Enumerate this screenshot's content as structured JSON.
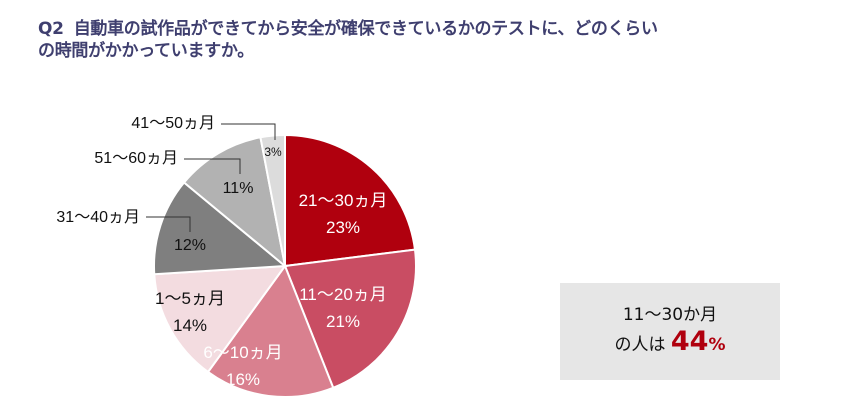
{
  "title": {
    "q_label": "Q2",
    "line1": "自動車の試作品ができてから安全が確保できているかのテストに、どのくらい",
    "line2": "の時間がかかっていますか。"
  },
  "summary": {
    "line1": "11～30か月",
    "line2_prefix": "の人は",
    "value": "44",
    "unit": "%"
  },
  "chart_data": {
    "type": "pie",
    "title": "Q2 自動車の試作品ができてから安全が確保できているかのテストに、どのくらいの時間がかかっていますか。",
    "start_angle_deg": 0,
    "direction": "clockwise",
    "categories": [
      "21～30ヵ月",
      "11～20ヵ月",
      "6～10ヵ月",
      "1～5ヵ月",
      "31～40ヵ月",
      "51～60ヵ月",
      "41～50ヵ月"
    ],
    "values": [
      23,
      21,
      16,
      14,
      12,
      11,
      3
    ],
    "colors": [
      "#b0000e",
      "#c94d63",
      "#d9808f",
      "#f3dce0",
      "#7f7f7f",
      "#b2b2b2",
      "#dcdcdc"
    ],
    "label_colors": [
      "#ffffff",
      "#ffffff",
      "#ffffff",
      "#111111",
      "#111111",
      "#111111",
      "#111111"
    ],
    "inside_label": [
      true,
      true,
      true,
      true,
      false,
      false,
      false
    ],
    "annotations": [
      {
        "text": "21～30ヵ月 23%",
        "position": "inside"
      },
      {
        "text": "11～20ヵ月 21%",
        "position": "inside"
      },
      {
        "text": "6～10ヵ月 16%",
        "position": "inside"
      },
      {
        "text": "1～5ヵ月 14%",
        "position": "inside"
      },
      {
        "text": "31～40ヵ月",
        "position": "outside-leader",
        "pct": "12%"
      },
      {
        "text": "51～60ヵ月",
        "position": "outside-leader",
        "pct": "11%"
      },
      {
        "text": "41～50ヵ月",
        "position": "outside-leader",
        "pct": "3%"
      }
    ],
    "unit": "%"
  }
}
